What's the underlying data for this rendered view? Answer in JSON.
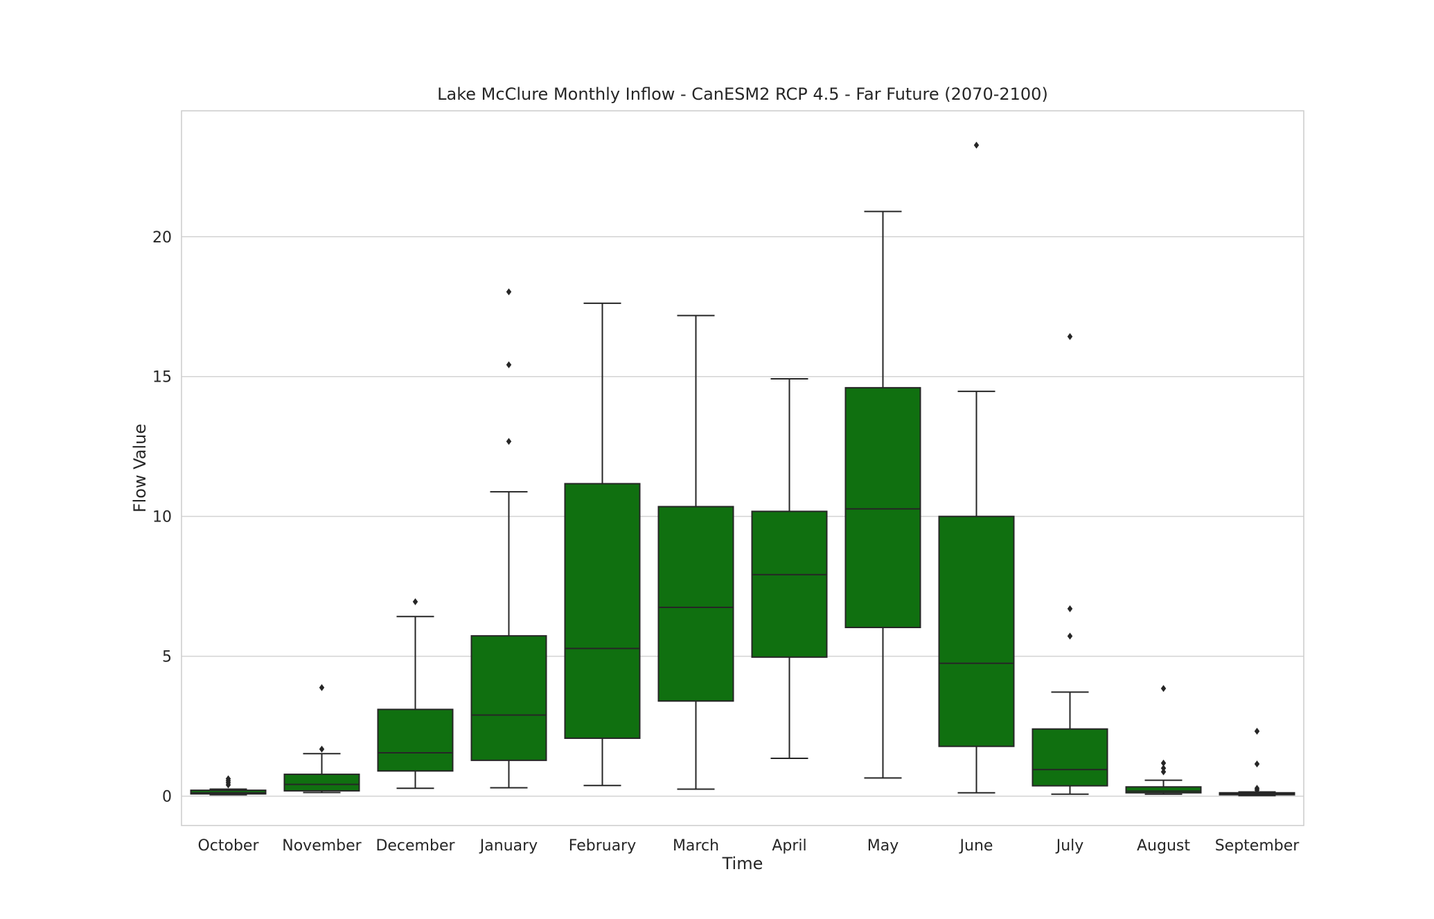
{
  "chart_data": {
    "type": "box",
    "title": "Lake McClure Monthly Inflow - CanESM2 RCP 4.5 - Far Future (2070-2100)",
    "xlabel": "Time",
    "ylabel": "Flow Value",
    "ylim": [
      -1.05,
      24.5
    ],
    "yticks": [
      0,
      5,
      10,
      15,
      20
    ],
    "grid": "y",
    "colors": {
      "box_fill": "#107010",
      "line": "#262626",
      "grid": "#d3d3d3",
      "frame": "#cccccc"
    },
    "categories": [
      "October",
      "November",
      "December",
      "January",
      "February",
      "March",
      "April",
      "May",
      "June",
      "July",
      "August",
      "September"
    ],
    "boxes": [
      {
        "label": "October",
        "whislo": 0.05,
        "q1": 0.08,
        "med": 0.12,
        "q3": 0.21,
        "whishi": 0.25,
        "fliers": [
          0.4,
          0.48,
          0.55,
          0.62
        ]
      },
      {
        "label": "November",
        "whislo": 0.13,
        "q1": 0.19,
        "med": 0.42,
        "q3": 0.78,
        "whishi": 1.52,
        "fliers": [
          1.68,
          3.88
        ]
      },
      {
        "label": "December",
        "whislo": 0.28,
        "q1": 0.9,
        "med": 1.55,
        "q3": 3.1,
        "whishi": 6.42,
        "fliers": [
          6.95
        ]
      },
      {
        "label": "January",
        "whislo": 0.3,
        "q1": 1.28,
        "med": 2.9,
        "q3": 5.73,
        "whishi": 10.88,
        "fliers": [
          12.68,
          15.42,
          18.03
        ]
      },
      {
        "label": "February",
        "whislo": 0.38,
        "q1": 2.07,
        "med": 5.28,
        "q3": 11.17,
        "whishi": 17.62,
        "fliers": []
      },
      {
        "label": "March",
        "whislo": 0.25,
        "q1": 3.4,
        "med": 6.75,
        "q3": 10.35,
        "whishi": 17.18,
        "fliers": []
      },
      {
        "label": "April",
        "whislo": 1.35,
        "q1": 4.97,
        "med": 7.92,
        "q3": 10.18,
        "whishi": 14.92,
        "fliers": []
      },
      {
        "label": "May",
        "whislo": 0.65,
        "q1": 6.03,
        "med": 10.27,
        "q3": 14.6,
        "whishi": 20.9,
        "fliers": []
      },
      {
        "label": "June",
        "whislo": 0.12,
        "q1": 1.78,
        "med": 4.75,
        "q3": 10.0,
        "whishi": 14.47,
        "fliers": [
          23.27
        ]
      },
      {
        "label": "July",
        "whislo": 0.07,
        "q1": 0.37,
        "med": 0.95,
        "q3": 2.4,
        "whishi": 3.72,
        "fliers": [
          5.72,
          6.7,
          16.43
        ]
      },
      {
        "label": "August",
        "whislo": 0.07,
        "q1": 0.12,
        "med": 0.18,
        "q3": 0.33,
        "whishi": 0.57,
        "fliers": [
          0.87,
          1.0,
          1.18,
          3.85
        ]
      },
      {
        "label": "September",
        "whislo": 0.02,
        "q1": 0.05,
        "med": 0.08,
        "q3": 0.12,
        "whishi": 0.15,
        "fliers": [
          0.22,
          0.28,
          1.15,
          2.32
        ]
      }
    ]
  }
}
